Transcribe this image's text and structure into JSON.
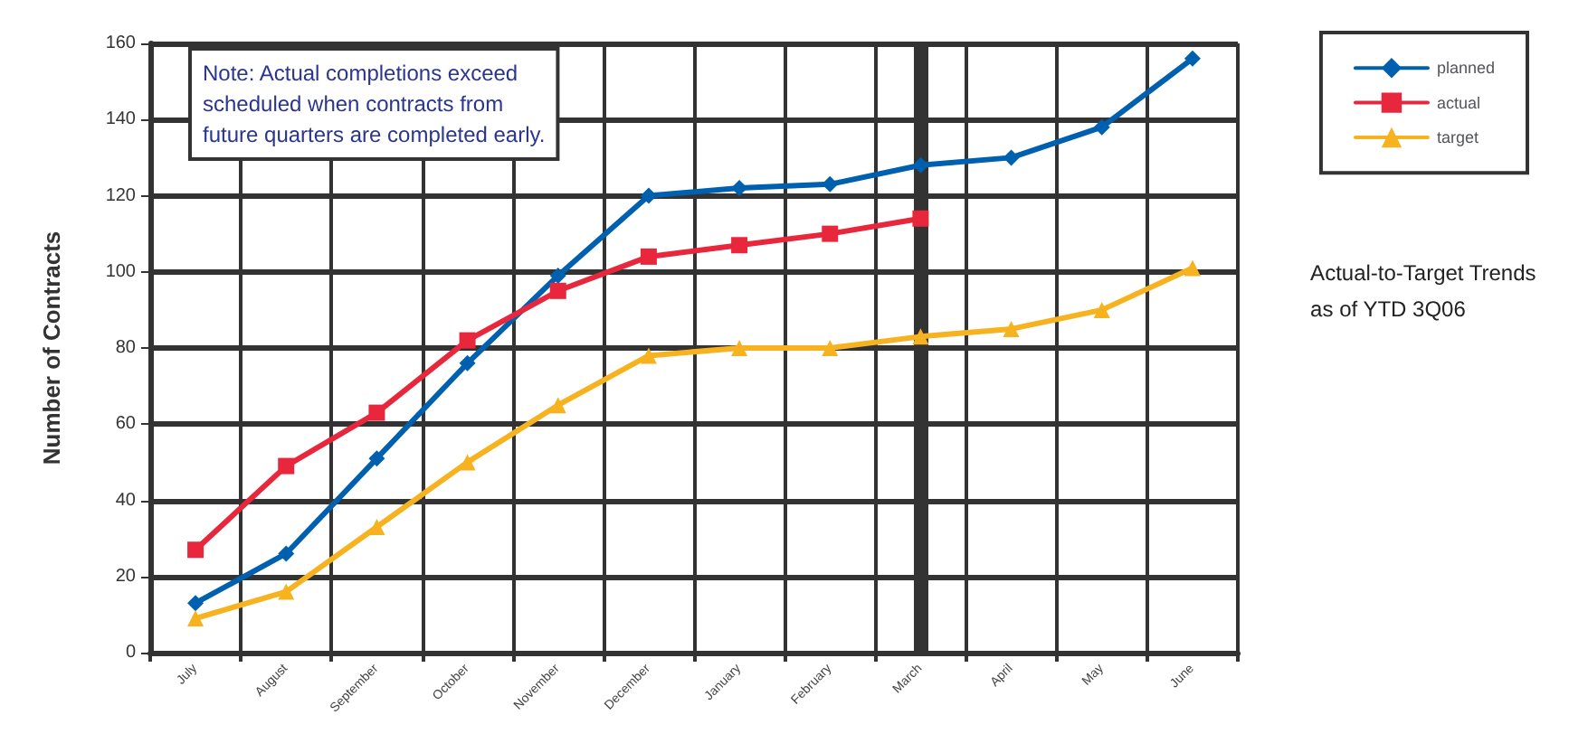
{
  "chart_data": {
    "type": "line",
    "title": "Actual-to-Target Trends\nas of YTD 3Q06",
    "ylabel": "Number of Contracts",
    "annotations": [
      "Note: Actual completions exceed\nscheduled when contracts from\nfuture quarters are completed early."
    ],
    "categories": [
      "July",
      "August",
      "September",
      "October",
      "November",
      "December",
      "January",
      "February",
      "March",
      "April",
      "May",
      "June"
    ],
    "series": [
      {
        "name": "planned",
        "color": "#0060b0",
        "marker": "diamond",
        "values": [
          13,
          26,
          51,
          76,
          99,
          120,
          122,
          123,
          128,
          130,
          138,
          156
        ]
      },
      {
        "name": "actual",
        "color": "#e8273c",
        "marker": "square",
        "values": [
          27,
          49,
          63,
          82,
          95,
          104,
          107,
          110,
          114,
          null,
          null,
          null
        ]
      },
      {
        "name": "target",
        "color": "#f7b21f",
        "marker": "triangle",
        "values": [
          9,
          16,
          33,
          50,
          65,
          78,
          80,
          80,
          83,
          85,
          90,
          101
        ]
      }
    ],
    "ylim": [
      0,
      160
    ],
    "yticks": [
      0,
      20,
      40,
      60,
      80,
      100,
      120,
      140,
      160
    ],
    "grid": true,
    "legend": "top right",
    "ref_lines": [
      {
        "axis": "x",
        "value": "March",
        "color": "#333333"
      }
    ]
  }
}
